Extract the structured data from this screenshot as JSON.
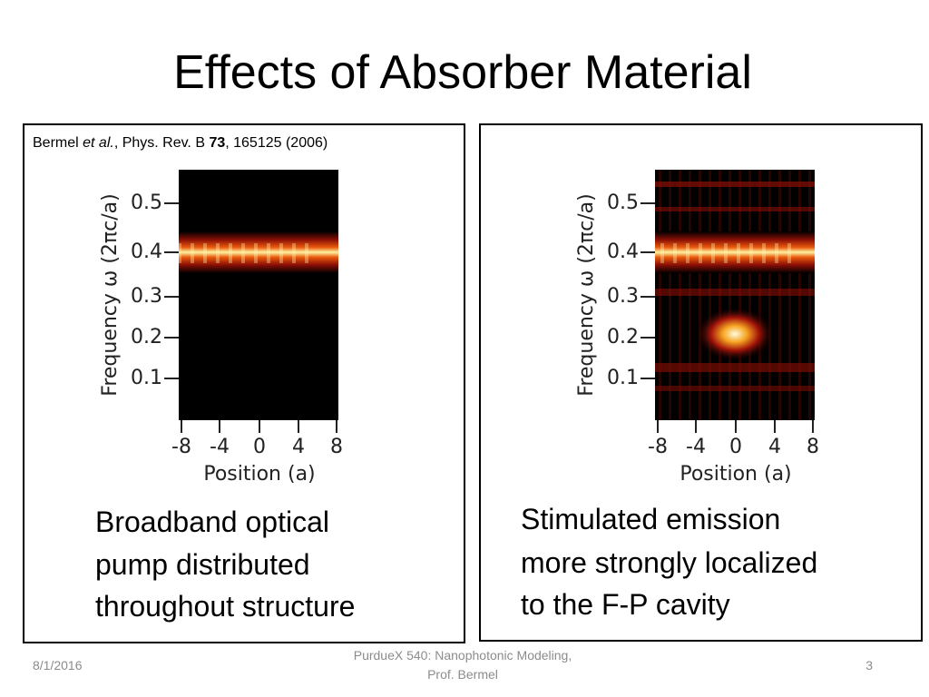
{
  "title": "Effects of Absorber Material",
  "citation": {
    "author": "Bermel ",
    "etal": "et al.",
    "journal": ", Phys. Rev. B ",
    "volume": "73",
    "rest": ", 165125 (2006)"
  },
  "panels": [
    {
      "y_label": "Frequency ω (2πc/a)",
      "x_label": "Position (a)",
      "yticks": [
        "0.5",
        "0.4",
        "0.3",
        "0.2",
        "0.1"
      ],
      "xticks": [
        "-8",
        "-4",
        "0",
        "4",
        "8"
      ],
      "caption": [
        "Broadband optical",
        "pump distributed",
        "throughout structure"
      ]
    },
    {
      "y_label": "Frequency ω (2πc/a)",
      "x_label": "Position (a)",
      "yticks": [
        "0.5",
        "0.4",
        "0.3",
        "0.2",
        "0.1"
      ],
      "xticks": [
        "-8",
        "-4",
        "0",
        "4",
        "8"
      ],
      "caption": [
        "Stimulated emission",
        "more strongly localized",
        "to the F-P cavity"
      ]
    }
  ],
  "footer": {
    "date": "8/1/2016",
    "course": [
      "PurdueX 540: Nanophotonic Modeling,",
      "Prof. Bermel"
    ],
    "page": "3"
  }
}
